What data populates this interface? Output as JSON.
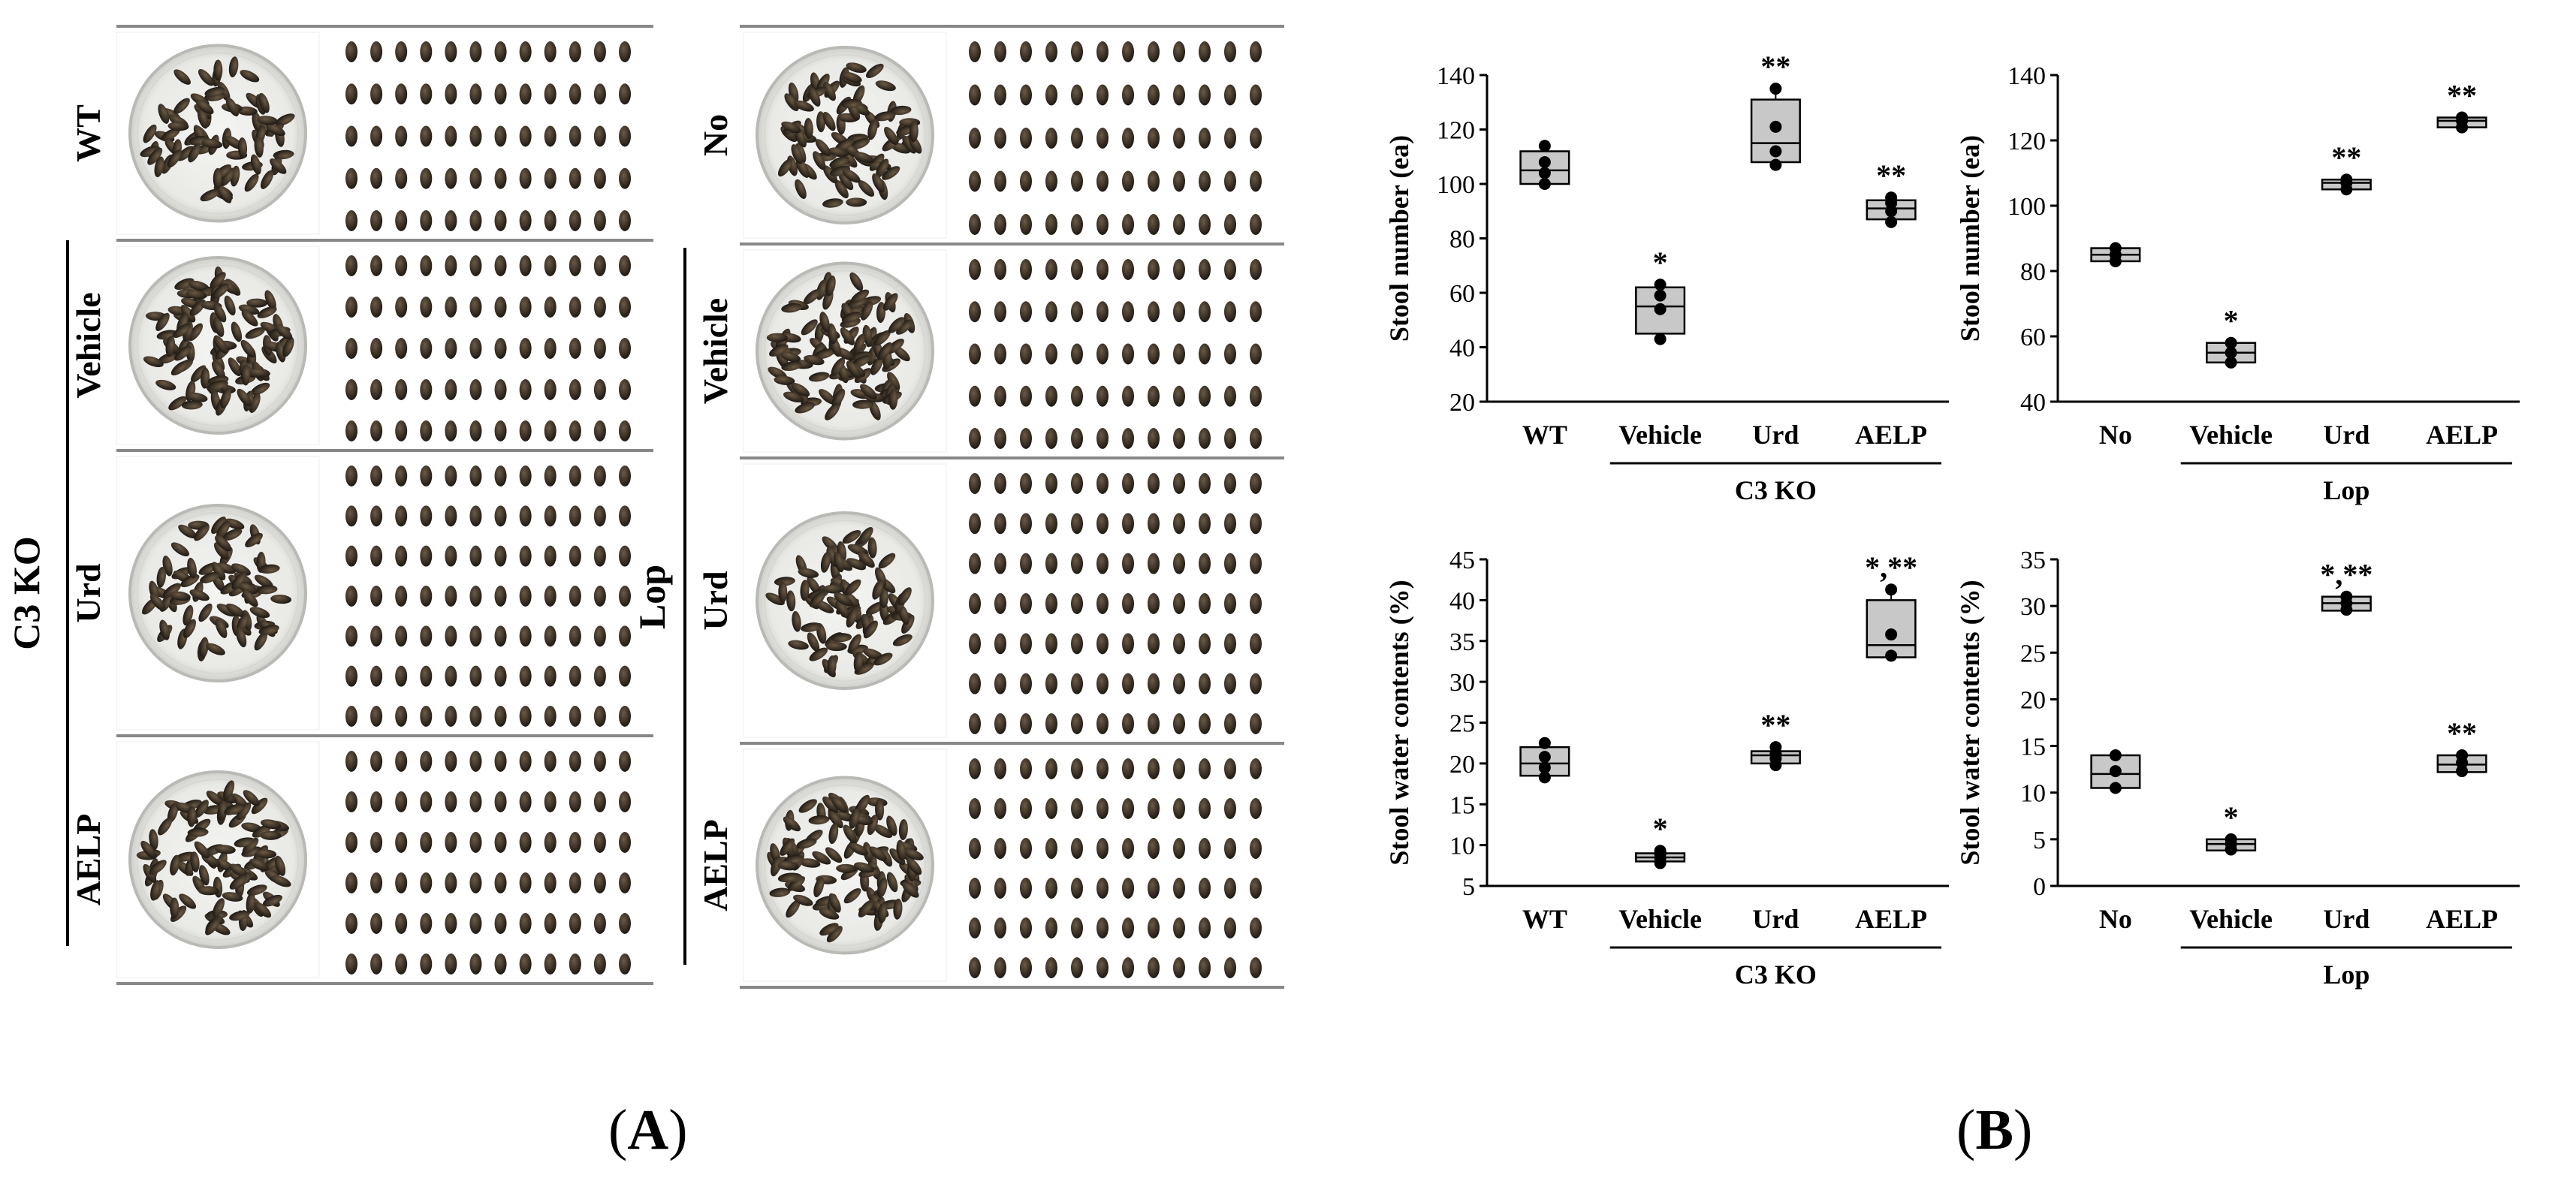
{
  "panel_a": {
    "letter": "A",
    "left_group_label": "C3 KO",
    "right_group_label": "Lop",
    "left_rows": [
      "WT",
      "Vehicle",
      "Urd",
      "AELP"
    ],
    "right_rows": [
      "No",
      "Vehicle",
      "Urd",
      "AELP"
    ],
    "images": [
      "petri-dish-with-stool-pellets",
      "rows-of-stool-pellets"
    ]
  },
  "panel_b": {
    "letter": "B"
  },
  "chart_data": [
    {
      "type": "box",
      "title": "",
      "ylabel": "Stool number (ea)",
      "xlabel": "",
      "ylim": [
        20,
        140
      ],
      "yticks": [
        20,
        40,
        60,
        80,
        100,
        120,
        140
      ],
      "categories": [
        "WT",
        "Vehicle",
        "Urd",
        "AELP"
      ],
      "group_label": "C3 KO",
      "group_span": [
        "Vehicle",
        "AELP"
      ],
      "boxes": [
        {
          "category": "WT",
          "q1": 100,
          "median": 105,
          "q3": 112,
          "min": 100,
          "max": 114,
          "points": [
            100,
            104,
            108,
            114
          ],
          "sig": ""
        },
        {
          "category": "Vehicle",
          "q1": 45,
          "median": 55,
          "q3": 62,
          "min": 43,
          "max": 63,
          "points": [
            43,
            54,
            59,
            63
          ],
          "sig": "*"
        },
        {
          "category": "Urd",
          "q1": 108,
          "median": 115,
          "q3": 131,
          "min": 107,
          "max": 135,
          "points": [
            107,
            112,
            121,
            135
          ],
          "sig": "**"
        },
        {
          "category": "AELP",
          "q1": 87,
          "median": 91,
          "q3": 94,
          "min": 86,
          "max": 95,
          "points": [
            86,
            90,
            93,
            95
          ],
          "sig": "**"
        }
      ]
    },
    {
      "type": "box",
      "title": "",
      "ylabel": "Stool number (ea)",
      "xlabel": "",
      "ylim": [
        40,
        140
      ],
      "yticks": [
        40,
        60,
        80,
        100,
        120,
        140
      ],
      "categories": [
        "No",
        "Vehicle",
        "Urd",
        "AELP"
      ],
      "group_label": "Lop",
      "group_span": [
        "Vehicle",
        "AELP"
      ],
      "boxes": [
        {
          "category": "No",
          "q1": 83,
          "median": 85,
          "q3": 87,
          "min": 83,
          "max": 87,
          "points": [
            83,
            85,
            87
          ],
          "sig": ""
        },
        {
          "category": "Vehicle",
          "q1": 52,
          "median": 55,
          "q3": 58,
          "min": 52,
          "max": 58,
          "points": [
            52,
            55,
            58
          ],
          "sig": "*"
        },
        {
          "category": "Urd",
          "q1": 105,
          "median": 107,
          "q3": 108,
          "min": 105,
          "max": 108,
          "points": [
            105,
            107,
            108
          ],
          "sig": "**"
        },
        {
          "category": "AELP",
          "q1": 124,
          "median": 126,
          "q3": 127,
          "min": 124,
          "max": 127,
          "points": [
            124,
            126,
            127
          ],
          "sig": "**"
        }
      ]
    },
    {
      "type": "box",
      "title": "",
      "ylabel": "Stool water contents (%)",
      "xlabel": "",
      "ylim": [
        5,
        45
      ],
      "yticks": [
        5,
        10,
        15,
        20,
        25,
        30,
        35,
        40,
        45
      ],
      "categories": [
        "WT",
        "Vehicle",
        "Urd",
        "AELP"
      ],
      "group_label": "C3 KO",
      "group_span": [
        "Vehicle",
        "AELP"
      ],
      "boxes": [
        {
          "category": "WT",
          "q1": 18.5,
          "median": 20,
          "q3": 22,
          "min": 18.3,
          "max": 22.5,
          "points": [
            18.3,
            19.5,
            20.8,
            22.5
          ],
          "sig": ""
        },
        {
          "category": "Vehicle",
          "q1": 8,
          "median": 8.5,
          "q3": 9,
          "min": 7.8,
          "max": 9.3,
          "points": [
            7.8,
            8.4,
            8.9,
            9.3
          ],
          "sig": "*"
        },
        {
          "category": "Urd",
          "q1": 20,
          "median": 21,
          "q3": 21.5,
          "min": 19.8,
          "max": 22,
          "points": [
            19.8,
            20.6,
            21.2,
            22
          ],
          "sig": "**"
        },
        {
          "category": "AELP",
          "q1": 33,
          "median": 34.5,
          "q3": 40,
          "min": 33,
          "max": 41.3,
          "points": [
            33.2,
            35.8,
            41.3
          ],
          "sig": "*,**"
        }
      ]
    },
    {
      "type": "box",
      "title": "",
      "ylabel": "Stool water contents (%)",
      "xlabel": "",
      "ylim": [
        0,
        35
      ],
      "yticks": [
        0,
        5,
        10,
        15,
        20,
        25,
        30,
        35
      ],
      "categories": [
        "No",
        "Vehicle",
        "Urd",
        "AELP"
      ],
      "group_label": "Lop",
      "group_span": [
        "Vehicle",
        "AELP"
      ],
      "boxes": [
        {
          "category": "No",
          "q1": 10.5,
          "median": 12,
          "q3": 14,
          "min": 10.5,
          "max": 14,
          "points": [
            10.5,
            12.3,
            14
          ],
          "sig": ""
        },
        {
          "category": "Vehicle",
          "q1": 3.8,
          "median": 4.5,
          "q3": 5,
          "min": 3.8,
          "max": 5,
          "points": [
            3.9,
            4.5,
            5
          ],
          "sig": "*"
        },
        {
          "category": "Urd",
          "q1": 29.5,
          "median": 30.3,
          "q3": 31,
          "min": 29.5,
          "max": 31,
          "points": [
            29.6,
            30.3,
            31
          ],
          "sig": "*,**"
        },
        {
          "category": "AELP",
          "q1": 12.2,
          "median": 13,
          "q3": 14,
          "min": 12.2,
          "max": 14,
          "points": [
            12.3,
            13.2,
            14
          ],
          "sig": "**"
        }
      ]
    }
  ]
}
